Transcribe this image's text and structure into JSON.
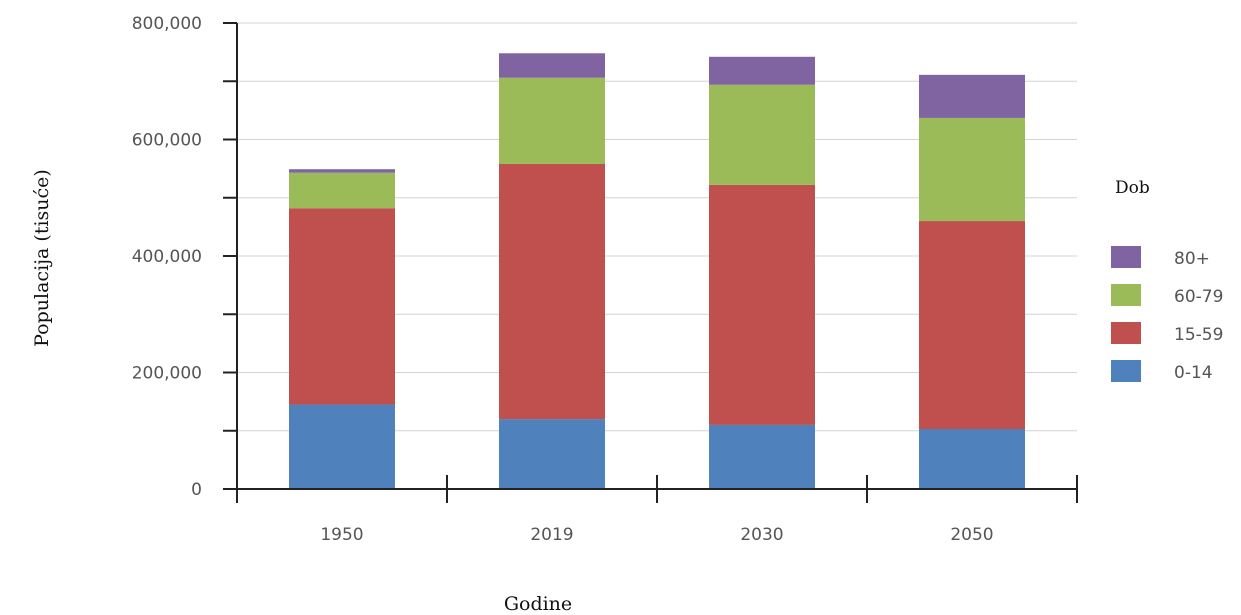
{
  "chart_data": {
    "type": "bar",
    "stacked": true,
    "categories": [
      "1950",
      "2019",
      "2030",
      "2050"
    ],
    "series": [
      {
        "name": "0-14",
        "color": "#4f81bd",
        "values": [
          145000,
          120000,
          110000,
          103000
        ]
      },
      {
        "name": "15-59",
        "color": "#c0504d",
        "values": [
          337000,
          438000,
          412000,
          357000
        ]
      },
      {
        "name": "60-79",
        "color": "#9bbb59",
        "values": [
          61000,
          148000,
          172000,
          177000
        ]
      },
      {
        "name": "80+",
        "color": "#8064a2",
        "values": [
          6000,
          42000,
          48000,
          74000
        ]
      }
    ],
    "xlabel": "Godine",
    "ylabel": "Populacija (tisuće)",
    "yticks": [
      "0",
      "200,000",
      "400,000",
      "600,000",
      "800,000"
    ],
    "ylim": [
      0,
      800000
    ],
    "grid": true,
    "legend": {
      "title": "Dob",
      "placement": "right",
      "order": [
        "80+",
        "60-79",
        "15-59",
        "0-14"
      ]
    }
  }
}
